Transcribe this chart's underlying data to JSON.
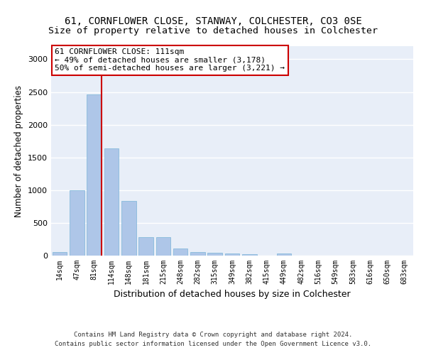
{
  "title": "61, CORNFLOWER CLOSE, STANWAY, COLCHESTER, CO3 0SE",
  "subtitle": "Size of property relative to detached houses in Colchester",
  "xlabel": "Distribution of detached houses by size in Colchester",
  "ylabel": "Number of detached properties",
  "bar_color": "#aec6e8",
  "bar_edge_color": "#7ab4d8",
  "background_color": "#e8eef8",
  "grid_color": "#ffffff",
  "categories": [
    "14sqm",
    "47sqm",
    "81sqm",
    "114sqm",
    "148sqm",
    "181sqm",
    "215sqm",
    "248sqm",
    "282sqm",
    "315sqm",
    "349sqm",
    "382sqm",
    "415sqm",
    "449sqm",
    "482sqm",
    "516sqm",
    "549sqm",
    "583sqm",
    "616sqm",
    "650sqm",
    "683sqm"
  ],
  "values": [
    50,
    1000,
    2460,
    1640,
    840,
    285,
    285,
    110,
    50,
    40,
    30,
    20,
    0,
    30,
    0,
    0,
    0,
    0,
    0,
    0,
    0
  ],
  "vline_color": "#cc0000",
  "annotation_text": "61 CORNFLOWER CLOSE: 111sqm\n← 49% of detached houses are smaller (3,178)\n50% of semi-detached houses are larger (3,221) →",
  "annotation_box_color": "#ffffff",
  "annotation_box_edge": "#cc0000",
  "ylim": [
    0,
    3200
  ],
  "yticks": [
    0,
    500,
    1000,
    1500,
    2000,
    2500,
    3000
  ],
  "footer_line1": "Contains HM Land Registry data © Crown copyright and database right 2024.",
  "footer_line2": "Contains public sector information licensed under the Open Government Licence v3.0.",
  "title_fontsize": 10,
  "subtitle_fontsize": 9.5,
  "xlabel_fontsize": 9,
  "ylabel_fontsize": 8.5,
  "tick_fontsize": 7,
  "annotation_fontsize": 8,
  "footer_fontsize": 6.5
}
